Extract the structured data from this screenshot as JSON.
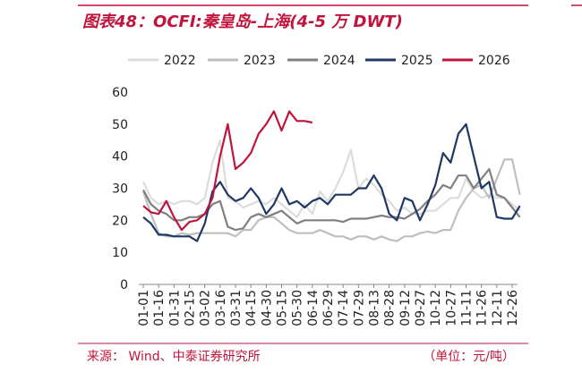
{
  "chart_data": {
    "type": "line",
    "title": "图表48：OCFI:秦皇岛-上海(4-5 万 DWT)",
    "source": "来源： Wind、中泰证券研究所",
    "note": "（单位：元/吨）",
    "legend": "top",
    "grid": false,
    "categories": [
      "01-01",
      null,
      "01-16",
      null,
      "01-31",
      null,
      "02-15",
      null,
      "03-02",
      null,
      "03-16",
      null,
      "03-31",
      null,
      "04-15",
      null,
      "04-30",
      null,
      "05-15",
      null,
      "05-30",
      null,
      "06-14",
      null,
      "06-29",
      null,
      "07-14",
      null,
      "07-29",
      null,
      "08-13",
      null,
      "08-28",
      null,
      "09-12",
      null,
      "09-27",
      null,
      "10-12",
      null,
      "10-27",
      null,
      "11-11",
      null,
      "11-26",
      null,
      "12-11",
      null,
      "12-26",
      null
    ],
    "ylim": [
      0,
      60
    ],
    "yticks": [
      0,
      10,
      20,
      30,
      40,
      50,
      60
    ],
    "series": [
      {
        "name": "2022",
        "color": "#dcdcdc",
        "values": [
          32,
          27,
          25,
          26,
          25,
          26,
          26,
          25,
          27,
          38,
          45,
          27,
          26,
          24,
          25,
          26,
          25,
          27,
          25,
          23,
          21,
          25,
          22,
          29,
          26,
          30,
          35,
          42,
          30,
          33,
          31,
          28,
          26,
          23,
          24,
          22,
          22,
          23,
          23,
          25,
          27,
          27,
          33,
          29,
          27,
          28,
          27,
          27,
          25,
          23
        ]
      },
      {
        "name": "2023",
        "color": "#bfbfbf",
        "values": [
          29,
          22,
          16,
          15,
          15,
          16,
          15.5,
          16,
          16,
          16,
          16,
          16,
          15,
          17,
          17,
          20,
          21,
          21,
          19,
          17,
          16,
          16,
          16,
          17,
          16,
          15,
          15,
          14,
          15,
          15,
          14,
          15,
          14,
          13.5,
          15,
          15,
          16,
          16.5,
          16,
          17,
          17,
          23,
          27,
          30,
          31,
          27,
          33,
          39,
          39,
          28
        ]
      },
      {
        "name": "2024",
        "color": "#808080",
        "values": [
          29.5,
          25,
          23,
          22,
          20,
          20,
          21,
          21,
          22,
          25,
          26,
          18,
          17,
          17.5,
          21,
          22,
          21,
          22,
          23,
          21,
          19,
          20,
          20,
          20,
          20,
          20,
          19.5,
          20.5,
          20.5,
          20.5,
          21,
          21.5,
          21,
          21,
          20.5,
          22,
          23.5,
          26,
          28,
          31,
          30,
          34,
          34,
          30,
          33,
          36,
          28,
          27,
          24,
          21
        ]
      },
      {
        "name": "2025",
        "color": "#1f3864",
        "values": [
          21,
          19,
          15.5,
          15.5,
          15,
          15,
          15,
          13.5,
          19,
          29,
          32,
          28,
          26,
          27,
          30,
          27,
          22,
          25,
          30,
          25,
          26,
          24,
          26,
          27,
          25,
          28,
          28,
          28,
          30,
          30,
          34,
          30,
          22,
          20,
          27,
          26,
          20,
          25,
          31,
          41,
          38,
          47,
          50,
          40,
          30,
          32,
          21,
          20.5,
          20.5,
          24.5
        ]
      },
      {
        "name": "2026",
        "color": "#c0143c",
        "values": [
          24.5,
          22.5,
          22,
          26,
          21,
          17,
          19.5,
          20,
          22,
          27,
          40,
          50,
          36,
          38,
          41,
          47,
          50,
          54,
          48,
          54,
          51,
          51,
          50.5,
          null,
          null,
          null,
          null,
          null,
          null,
          null,
          null,
          null,
          null,
          null,
          null,
          null,
          null,
          null,
          null,
          null,
          null,
          null,
          null,
          null,
          null,
          null,
          null,
          null,
          null,
          null
        ]
      }
    ]
  }
}
